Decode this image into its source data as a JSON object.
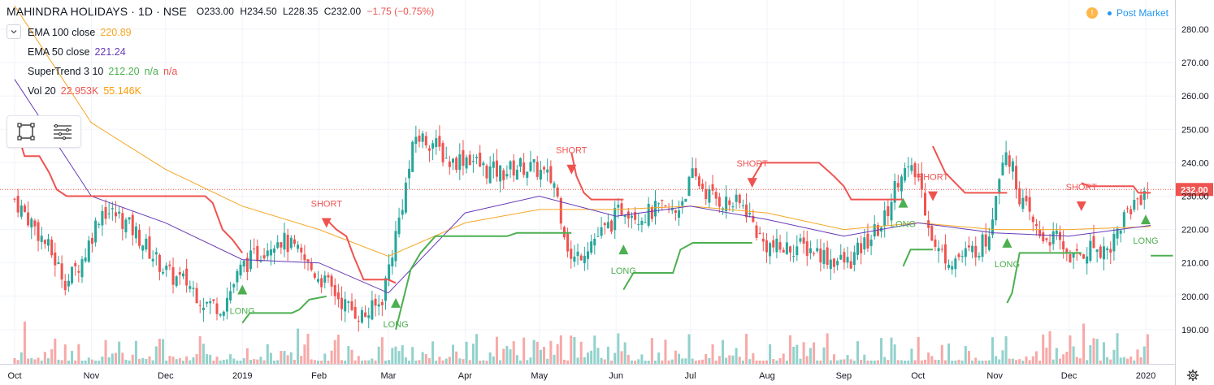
{
  "header": {
    "symbol": "MAHINDRA HOLIDAYS · 1D · NSE",
    "open": "O233.00",
    "high": "H234.50",
    "low": "L228.35",
    "close": "C232.00",
    "change": "−1.75 (−0.75%)"
  },
  "indicators": {
    "ema100": {
      "label": "EMA 100 close",
      "value": "220.89",
      "color": "#f5a623"
    },
    "ema50": {
      "label": "EMA 50 close",
      "value": "221.24",
      "color": "#673ab7"
    },
    "supertrend": {
      "label": "SuperTrend 3 10",
      "value": "212.20",
      "na1": "n/a",
      "na2": "n/a",
      "up_color": "#4caf50",
      "down_color": "#ef5350"
    },
    "vol": {
      "label": "Vol 20",
      "value1": "22.953K",
      "value2": "55.146K"
    }
  },
  "post_market": {
    "label": "Post Market",
    "icon": "clock-icon"
  },
  "toolbar": {
    "rect_icon": "rectangle-select-icon",
    "menu_icon": "lines-menu-icon"
  },
  "chart_data": {
    "type": "candlestick",
    "ylim": [
      183,
      287
    ],
    "y_ticks": [
      "280.00",
      "270.00",
      "260.00",
      "250.00",
      "240.00",
      "230.00",
      "220.00",
      "210.00",
      "200.00",
      "190.00"
    ],
    "x_ticks": [
      {
        "label": "Oct",
        "date": "2018-10-01"
      },
      {
        "label": "Nov",
        "date": "2018-11-01"
      },
      {
        "label": "Dec",
        "date": "2018-12-01"
      },
      {
        "label": "2019",
        "date": "2019-01-01"
      },
      {
        "label": "Feb",
        "date": "2019-02-01"
      },
      {
        "label": "Mar",
        "date": "2019-03-01"
      },
      {
        "label": "Apr",
        "date": "2019-04-01"
      },
      {
        "label": "May",
        "date": "2019-05-01"
      },
      {
        "label": "Jun",
        "date": "2019-06-01"
      },
      {
        "label": "Jul",
        "date": "2019-07-01"
      },
      {
        "label": "Aug",
        "date": "2019-08-01"
      },
      {
        "label": "Sep",
        "date": "2019-09-01"
      },
      {
        "label": "Oct",
        "date": "2019-10-01"
      },
      {
        "label": "Nov",
        "date": "2019-11-01"
      },
      {
        "label": "Dec",
        "date": "2019-12-01"
      },
      {
        "label": "2020",
        "date": "2020-01-01"
      }
    ],
    "last_price": "232.00",
    "up_color": "#26a69a",
    "down_color": "#ef5350",
    "close_path": [
      {
        "date": "2018-10-01",
        "close": 229
      },
      {
        "date": "2018-10-08",
        "close": 222
      },
      {
        "date": "2018-10-15",
        "close": 214
      },
      {
        "date": "2018-10-22",
        "close": 204
      },
      {
        "date": "2018-10-29",
        "close": 212
      },
      {
        "date": "2018-11-05",
        "close": 226
      },
      {
        "date": "2018-11-12",
        "close": 224
      },
      {
        "date": "2018-11-19",
        "close": 219
      },
      {
        "date": "2018-11-26",
        "close": 212
      },
      {
        "date": "2018-12-03",
        "close": 206
      },
      {
        "date": "2018-12-10",
        "close": 204
      },
      {
        "date": "2018-12-17",
        "close": 198
      },
      {
        "date": "2018-12-24",
        "close": 197
      },
      {
        "date": "2019-01-01",
        "close": 209
      },
      {
        "date": "2019-01-08",
        "close": 213
      },
      {
        "date": "2019-01-15",
        "close": 218
      },
      {
        "date": "2019-01-22",
        "close": 214
      },
      {
        "date": "2019-01-29",
        "close": 208
      },
      {
        "date": "2019-02-05",
        "close": 203
      },
      {
        "date": "2019-02-12",
        "close": 197
      },
      {
        "date": "2019-02-19",
        "close": 194
      },
      {
        "date": "2019-02-26",
        "close": 198
      },
      {
        "date": "2019-03-05",
        "close": 222
      },
      {
        "date": "2019-03-12",
        "close": 248
      },
      {
        "date": "2019-03-19",
        "close": 246
      },
      {
        "date": "2019-03-26",
        "close": 240
      },
      {
        "date": "2019-04-02",
        "close": 242
      },
      {
        "date": "2019-04-09",
        "close": 238
      },
      {
        "date": "2019-04-16",
        "close": 237
      },
      {
        "date": "2019-04-23",
        "close": 239
      },
      {
        "date": "2019-04-30",
        "close": 238
      },
      {
        "date": "2019-05-07",
        "close": 234
      },
      {
        "date": "2019-05-14",
        "close": 210
      },
      {
        "date": "2019-05-21",
        "close": 216
      },
      {
        "date": "2019-05-28",
        "close": 220
      },
      {
        "date": "2019-06-04",
        "close": 227
      },
      {
        "date": "2019-06-11",
        "close": 224
      },
      {
        "date": "2019-06-18",
        "close": 226
      },
      {
        "date": "2019-06-25",
        "close": 225
      },
      {
        "date": "2019-07-02",
        "close": 236
      },
      {
        "date": "2019-07-09",
        "close": 230
      },
      {
        "date": "2019-07-16",
        "close": 228
      },
      {
        "date": "2019-07-23",
        "close": 227
      },
      {
        "date": "2019-07-30",
        "close": 216
      },
      {
        "date": "2019-08-06",
        "close": 214
      },
      {
        "date": "2019-08-13",
        "close": 215
      },
      {
        "date": "2019-08-20",
        "close": 214
      },
      {
        "date": "2019-08-27",
        "close": 211
      },
      {
        "date": "2019-09-03",
        "close": 210
      },
      {
        "date": "2019-09-10",
        "close": 216
      },
      {
        "date": "2019-09-17",
        "close": 222
      },
      {
        "date": "2019-09-24",
        "close": 238
      },
      {
        "date": "2019-10-01",
        "close": 236
      },
      {
        "date": "2019-10-08",
        "close": 214
      },
      {
        "date": "2019-10-15",
        "close": 211
      },
      {
        "date": "2019-10-22",
        "close": 213
      },
      {
        "date": "2019-10-29",
        "close": 217
      },
      {
        "date": "2019-11-05",
        "close": 246
      },
      {
        "date": "2019-11-12",
        "close": 228
      },
      {
        "date": "2019-11-19",
        "close": 218
      },
      {
        "date": "2019-11-26",
        "close": 217
      },
      {
        "date": "2019-12-03",
        "close": 211
      },
      {
        "date": "2019-12-10",
        "close": 215
      },
      {
        "date": "2019-12-17",
        "close": 214
      },
      {
        "date": "2019-12-24",
        "close": 225
      },
      {
        "date": "2020-01-01",
        "close": 232
      },
      {
        "date": "2020-01-03",
        "close": 232
      }
    ],
    "ema100_path": [
      {
        "date": "2018-10-01",
        "v": 287
      },
      {
        "date": "2018-11-01",
        "v": 252
      },
      {
        "date": "2018-12-01",
        "v": 238
      },
      {
        "date": "2019-01-01",
        "v": 227
      },
      {
        "date": "2019-02-01",
        "v": 220
      },
      {
        "date": "2019-03-01",
        "v": 212
      },
      {
        "date": "2019-04-01",
        "v": 222
      },
      {
        "date": "2019-05-01",
        "v": 226
      },
      {
        "date": "2019-06-01",
        "v": 226
      },
      {
        "date": "2019-07-01",
        "v": 227
      },
      {
        "date": "2019-08-01",
        "v": 225
      },
      {
        "date": "2019-09-01",
        "v": 220
      },
      {
        "date": "2019-10-01",
        "v": 222
      },
      {
        "date": "2019-11-01",
        "v": 220
      },
      {
        "date": "2019-12-01",
        "v": 220
      },
      {
        "date": "2020-01-03",
        "v": 220.89
      }
    ],
    "ema50_path": [
      {
        "date": "2018-10-01",
        "v": 265
      },
      {
        "date": "2018-11-01",
        "v": 230
      },
      {
        "date": "2018-12-01",
        "v": 222
      },
      {
        "date": "2019-01-01",
        "v": 211
      },
      {
        "date": "2019-02-01",
        "v": 210
      },
      {
        "date": "2019-03-01",
        "v": 201
      },
      {
        "date": "2019-04-01",
        "v": 225
      },
      {
        "date": "2019-05-01",
        "v": 230
      },
      {
        "date": "2019-06-01",
        "v": 224
      },
      {
        "date": "2019-07-01",
        "v": 227
      },
      {
        "date": "2019-08-01",
        "v": 223
      },
      {
        "date": "2019-09-01",
        "v": 218
      },
      {
        "date": "2019-10-01",
        "v": 222
      },
      {
        "date": "2019-11-01",
        "v": 219
      },
      {
        "date": "2019-12-01",
        "v": 218
      },
      {
        "date": "2020-01-03",
        "v": 221.24
      }
    ],
    "supertrend": [
      {
        "dir": "down",
        "pts": [
          [
            "2018-10-01",
            254
          ],
          [
            "2018-10-03",
            247
          ],
          [
            "2018-10-05",
            242
          ],
          [
            "2018-10-11",
            242
          ],
          [
            "2018-10-15",
            237
          ],
          [
            "2018-10-18",
            232
          ],
          [
            "2018-10-22",
            230
          ],
          [
            "2018-11-28",
            230
          ],
          [
            "2018-12-17",
            230
          ],
          [
            "2018-12-20",
            228
          ],
          [
            "2018-12-24",
            220
          ],
          [
            "2018-12-28",
            217
          ],
          [
            "2019-01-01",
            213
          ]
        ]
      },
      {
        "dir": "up",
        "pts": [
          [
            "2019-01-01",
            192
          ],
          [
            "2019-01-04",
            195
          ],
          [
            "2019-01-21",
            195
          ],
          [
            "2019-01-24",
            196
          ],
          [
            "2019-01-28",
            199
          ],
          [
            "2019-02-04",
            200
          ]
        ]
      },
      {
        "dir": "down",
        "pts": [
          [
            "2019-02-04",
            223
          ],
          [
            "2019-02-08",
            220
          ],
          [
            "2019-02-12",
            218
          ],
          [
            "2019-02-15",
            212
          ],
          [
            "2019-02-19",
            205
          ],
          [
            "2019-03-01",
            205
          ],
          [
            "2019-03-04",
            204
          ]
        ]
      },
      {
        "dir": "up",
        "pts": [
          [
            "2019-03-04",
            190
          ],
          [
            "2019-03-06",
            196
          ],
          [
            "2019-03-10",
            208
          ],
          [
            "2019-03-14",
            213
          ],
          [
            "2019-03-20",
            218
          ],
          [
            "2019-04-18",
            218
          ],
          [
            "2019-04-22",
            219
          ],
          [
            "2019-05-07",
            219
          ],
          [
            "2019-05-14",
            219
          ]
        ]
      },
      {
        "dir": "down",
        "pts": [
          [
            "2019-05-14",
            243
          ],
          [
            "2019-05-16",
            236
          ],
          [
            "2019-05-19",
            231
          ],
          [
            "2019-05-22",
            229
          ],
          [
            "2019-06-04",
            229
          ]
        ]
      },
      {
        "dir": "up",
        "pts": [
          [
            "2019-06-04",
            202
          ],
          [
            "2019-06-08",
            207
          ],
          [
            "2019-06-24",
            207
          ],
          [
            "2019-06-27",
            214
          ],
          [
            "2019-07-02",
            216
          ],
          [
            "2019-07-26",
            216
          ]
        ]
      },
      {
        "dir": "down",
        "pts": [
          [
            "2019-07-26",
            235
          ],
          [
            "2019-07-30",
            240
          ],
          [
            "2019-08-22",
            240
          ],
          [
            "2019-08-28",
            236
          ],
          [
            "2019-09-01",
            233
          ],
          [
            "2019-09-04",
            229
          ],
          [
            "2019-09-25",
            229
          ]
        ]
      },
      {
        "dir": "up",
        "pts": [
          [
            "2019-09-25",
            209
          ],
          [
            "2019-09-28",
            214
          ],
          [
            "2019-10-07",
            214
          ]
        ]
      },
      {
        "dir": "down",
        "pts": [
          [
            "2019-10-07",
            245
          ],
          [
            "2019-10-12",
            237
          ],
          [
            "2019-10-16",
            234
          ],
          [
            "2019-10-20",
            231
          ],
          [
            "2019-11-06",
            231
          ]
        ]
      },
      {
        "dir": "up",
        "pts": [
          [
            "2019-11-06",
            198
          ],
          [
            "2019-11-08",
            201
          ],
          [
            "2019-11-11",
            213
          ],
          [
            "2019-12-06",
            213
          ]
        ]
      },
      {
        "dir": "down",
        "pts": [
          [
            "2019-12-06",
            234
          ],
          [
            "2019-12-09",
            233
          ],
          [
            "2019-12-27",
            233
          ],
          [
            "2019-12-29",
            231
          ],
          [
            "2020-01-03",
            231
          ]
        ]
      },
      {
        "dir": "up",
        "pts": [
          [
            "2020-01-03",
            212.2
          ],
          [
            "2020-01-12",
            212.2
          ]
        ]
      }
    ],
    "signals": [
      {
        "type": "LONG",
        "date": "2019-01-01",
        "price": 203
      },
      {
        "type": "SHORT",
        "date": "2019-02-04",
        "price": 221
      },
      {
        "type": "LONG",
        "date": "2019-03-04",
        "price": 199
      },
      {
        "type": "SHORT",
        "date": "2019-05-14",
        "price": 237
      },
      {
        "type": "LONG",
        "date": "2019-06-04",
        "price": 215
      },
      {
        "type": "SHORT",
        "date": "2019-07-26",
        "price": 233
      },
      {
        "type": "LONG",
        "date": "2019-09-25",
        "price": 229
      },
      {
        "type": "SHORT",
        "date": "2019-10-07",
        "price": 229
      },
      {
        "type": "LONG",
        "date": "2019-11-06",
        "price": 217
      },
      {
        "type": "SHORT",
        "date": "2019-12-06",
        "price": 226
      },
      {
        "type": "LONG",
        "date": "2020-01-01",
        "price": 224
      }
    ]
  }
}
